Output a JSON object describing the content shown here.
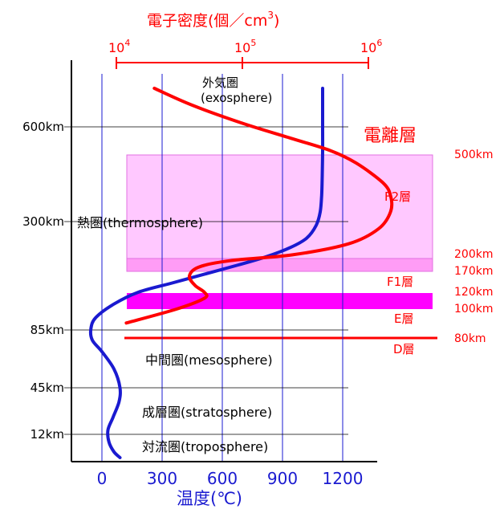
{
  "colors": {
    "red": "#ff0000",
    "blue": "#1a1ad0",
    "axis": "#000000",
    "grid": "#000000",
    "band_light": "#ffc8ff",
    "band_mid": "#ff9cf6",
    "band_strong": "#ff00ff"
  },
  "chart_data": {
    "type": "line",
    "top_axis": {
      "title": "電子密度(個／cm",
      "title_sup": "3",
      "title_close": ")",
      "scale": "log",
      "ticks": [
        {
          "base": "10",
          "exp": "4",
          "value": 10000
        },
        {
          "base": "10",
          "exp": "5",
          "value": 100000
        },
        {
          "base": "10",
          "exp": "6",
          "value": 1000000
        }
      ]
    },
    "bottom_axis": {
      "title": "温度(℃)",
      "ticks": [
        0,
        300,
        600,
        900,
        1200
      ],
      "range": [
        -100,
        1400
      ]
    },
    "left_axis": {
      "ticks": [
        {
          "label": "600km",
          "value": 600
        },
        {
          "label": "300km",
          "value": 300
        },
        {
          "label": "85km",
          "value": 85
        },
        {
          "label": "45km",
          "value": 45
        },
        {
          "label": "12km",
          "value": 12
        }
      ]
    },
    "layers": [
      {
        "name": "外気圏",
        "sub": "(exosphere)"
      },
      {
        "name": "熱圏(thermosphere)"
      },
      {
        "name": "中間圏(mesosphere)"
      },
      {
        "name": "成層圏(stratosphere)"
      },
      {
        "name": "対流圏(troposphere)"
      }
    ],
    "ionosphere": {
      "title": "電離層",
      "layers": [
        "F2層",
        "F1層",
        "E層",
        "D層"
      ],
      "heights": [
        "500km",
        "200km",
        "170km",
        "120km",
        "100km",
        "80km"
      ]
    },
    "series": [
      {
        "name": "",
        "axis": "temperature",
        "color": "#1a1ad0",
        "points": [
          [
            1100,
            760
          ],
          [
            1100,
            680
          ],
          [
            1100,
            600
          ],
          [
            1100,
            520
          ],
          [
            1098,
            440
          ],
          [
            1095,
            380
          ],
          [
            1088,
            330
          ],
          [
            1068,
            290
          ],
          [
            1020,
            255
          ],
          [
            940,
            230
          ],
          [
            820,
            205
          ],
          [
            680,
            185
          ],
          [
            520,
            165
          ],
          [
            350,
            145
          ],
          [
            180,
            125
          ],
          [
            60,
            107
          ],
          [
            -30,
            94
          ],
          [
            -55,
            86
          ],
          [
            -48,
            78
          ],
          [
            0,
            70
          ],
          [
            60,
            58
          ],
          [
            90,
            45
          ],
          [
            85,
            35
          ],
          [
            55,
            24
          ],
          [
            30,
            15
          ],
          [
            35,
            8
          ],
          [
            60,
            3
          ],
          [
            90,
            0
          ]
        ]
      },
      {
        "name": "",
        "axis": "electron_density",
        "color": "#ff0000",
        "points": [
          [
            20000,
            760
          ],
          [
            40000,
            690
          ],
          [
            100000,
            615
          ],
          [
            250000,
            560
          ],
          [
            500000,
            520
          ],
          [
            800000,
            480
          ],
          [
            1300000,
            420
          ],
          [
            1500000,
            380
          ],
          [
            1500000,
            330
          ],
          [
            1200000,
            280
          ],
          [
            700000,
            240
          ],
          [
            250000,
            210
          ],
          [
            80000,
            195
          ],
          [
            45000,
            180
          ],
          [
            38000,
            160
          ],
          [
            42000,
            140
          ],
          [
            50000,
            125
          ],
          [
            50000,
            115
          ],
          [
            30000,
            100
          ],
          [
            12000,
            90
          ]
        ]
      }
    ]
  }
}
